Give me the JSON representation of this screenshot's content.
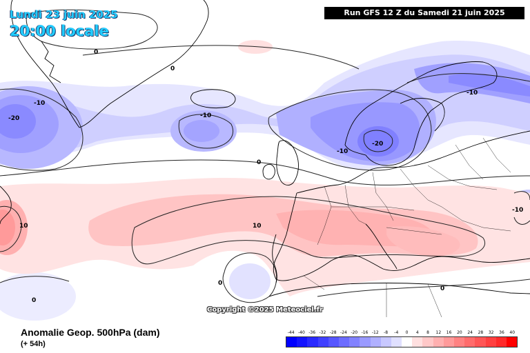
{
  "header": {
    "date": "Lundi 23 juin 2025",
    "time": "20:00 locale",
    "run": "Run GFS 12 Z du Samedi 21 juin 2025"
  },
  "copyright": "Copyright ©2025 Meteociel.fr",
  "footer": {
    "title": "Anomalie Geop. 500hPa (dam)",
    "subtitle": "(+ 54h)"
  },
  "legend": {
    "labels": [
      "-44",
      "-40",
      "-36",
      "-32",
      "-28",
      "-24",
      "-20",
      "-16",
      "-12",
      "-8",
      "-4",
      "0",
      "4",
      "8",
      "12",
      "16",
      "20",
      "24",
      "28",
      "32",
      "36",
      "40"
    ],
    "colors": [
      "#0000ff",
      "#1414ff",
      "#2a2aff",
      "#4040ff",
      "#5656ff",
      "#6c6cff",
      "#8282ff",
      "#9a9aff",
      "#b0b0ff",
      "#c8c8ff",
      "#e0e0ff",
      "#ffffff",
      "#ffe0e0",
      "#ffc8c8",
      "#ffb0b0",
      "#ff9a9a",
      "#ff8282",
      "#ff6c6c",
      "#ff5656",
      "#ff4040",
      "#ff2a2a",
      "#ff0000"
    ]
  },
  "contour_labels": [
    {
      "text": "-20"
    },
    {
      "text": "-10"
    },
    {
      "text": "0"
    },
    {
      "text": "0"
    },
    {
      "text": "-10"
    },
    {
      "text": "-10"
    },
    {
      "text": "-10"
    },
    {
      "text": "-20"
    },
    {
      "text": "0"
    },
    {
      "text": "10"
    },
    {
      "text": "10"
    },
    {
      "text": "0"
    },
    {
      "text": "0"
    },
    {
      "text": "0"
    },
    {
      "text": "-10"
    }
  ],
  "colors": {
    "title": "#22ccff",
    "negative_anomaly": "#8282ff",
    "positive_anomaly": "#ff9a9a"
  }
}
